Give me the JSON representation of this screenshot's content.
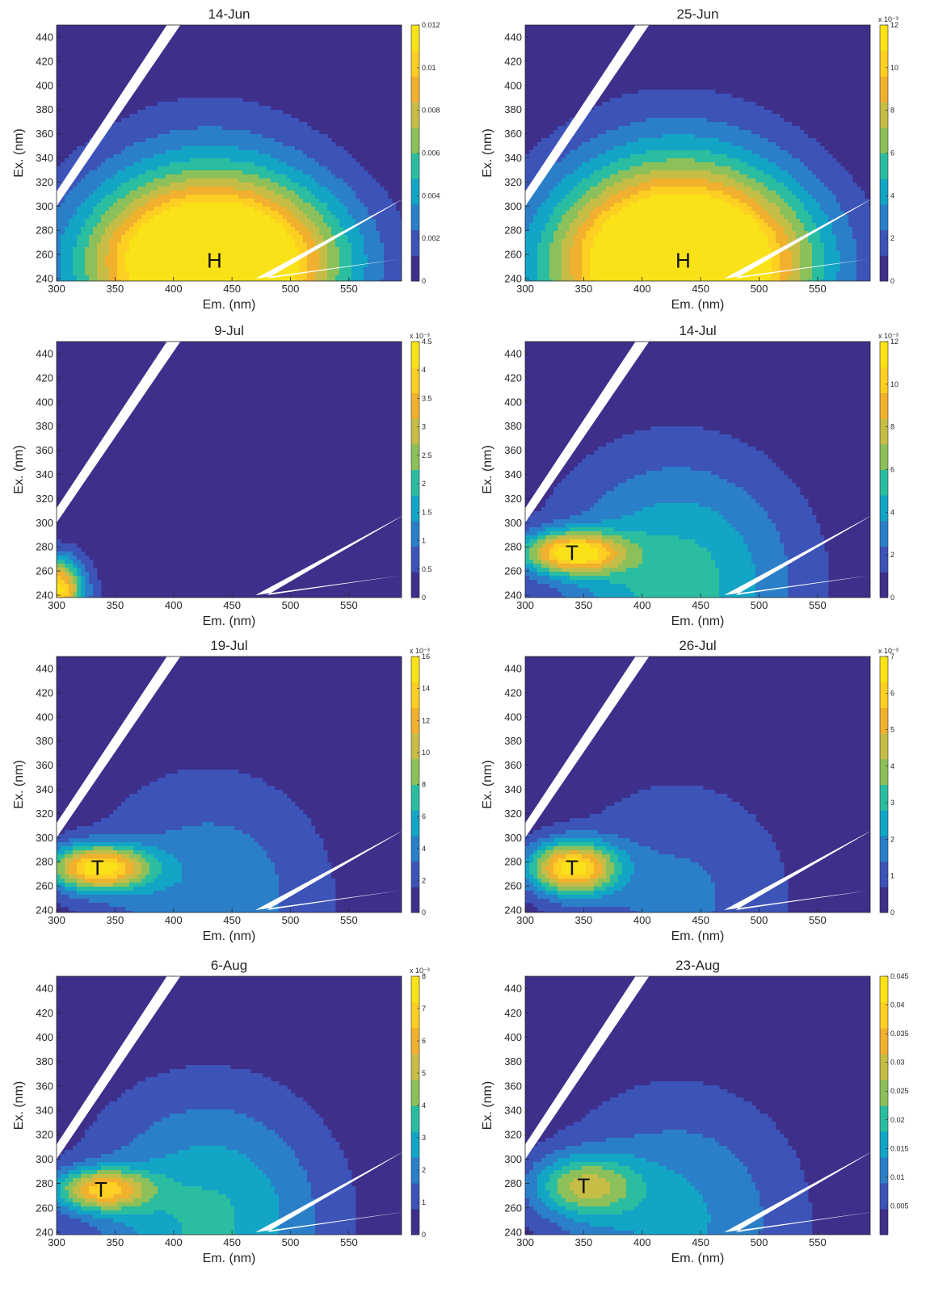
{
  "figure": {
    "palette": [
      "#3e2f8a",
      "#3c53b8",
      "#2a7fc8",
      "#12a5c5",
      "#2bbda0",
      "#8cc05a",
      "#c6bd47",
      "#f1b02e",
      "#fccf22",
      "#f9e218"
    ],
    "scatter_white": "#ffffff"
  },
  "chart_data": [
    {
      "type": "heatmap",
      "title": "14-Jun",
      "xlabel": "Em. (nm)",
      "ylabel": "Ex. (nm)",
      "xlim": [
        300,
        595
      ],
      "ylim": [
        238,
        450
      ],
      "x_ticks": [
        "300",
        "350",
        "400",
        "450",
        "500",
        "550"
      ],
      "y_ticks": [
        "240",
        "260",
        "280",
        "300",
        "320",
        "340",
        "360",
        "380",
        "400",
        "420",
        "440"
      ],
      "colorbar": {
        "min": 0,
        "max": 0.012,
        "exponent": "",
        "ticks": [
          {
            "v": 0,
            "label": "0"
          },
          {
            "v": 0.002,
            "label": "0.002"
          },
          {
            "v": 0.004,
            "label": "0.004"
          },
          {
            "v": 0.006,
            "label": "0.006"
          },
          {
            "v": 0.008,
            "label": "0.008"
          },
          {
            "v": 0.01,
            "label": "0.01"
          },
          {
            "v": 0.012,
            "label": "0.012"
          }
        ]
      },
      "peaks": [
        {
          "label": "H",
          "em": 435,
          "ex": 255,
          "value": 0.0115,
          "sem": 72,
          "sex": 42
        }
      ]
    },
    {
      "type": "heatmap",
      "title": "25-Jun",
      "xlabel": "Em. (nm)",
      "ylabel": "Ex. (nm)",
      "xlim": [
        300,
        595
      ],
      "ylim": [
        238,
        450
      ],
      "x_ticks": [
        "300",
        "350",
        "400",
        "450",
        "500",
        "550"
      ],
      "y_ticks": [
        "240",
        "260",
        "280",
        "300",
        "320",
        "340",
        "360",
        "380",
        "400",
        "420",
        "440"
      ],
      "colorbar": {
        "min": 0,
        "max": 12,
        "exponent": "x 10⁻³",
        "ticks": [
          {
            "v": 0,
            "label": "0"
          },
          {
            "v": 2,
            "label": "2"
          },
          {
            "v": 4,
            "label": "4"
          },
          {
            "v": 6,
            "label": "6"
          },
          {
            "v": 8,
            "label": "8"
          },
          {
            "v": 10,
            "label": "10"
          },
          {
            "v": 12,
            "label": "12"
          }
        ]
      },
      "peaks": [
        {
          "label": "H",
          "em": 435,
          "ex": 255,
          "value": 11,
          "sem": 74,
          "sex": 46
        }
      ]
    },
    {
      "type": "heatmap",
      "title": "9-Jul",
      "xlabel": "Em. (nm)",
      "ylabel": "Ex. (nm)",
      "xlim": [
        300,
        595
      ],
      "ylim": [
        238,
        450
      ],
      "x_ticks": [
        "300",
        "350",
        "400",
        "450",
        "500",
        "550"
      ],
      "y_ticks": [
        "240",
        "260",
        "280",
        "300",
        "320",
        "340",
        "360",
        "380",
        "400",
        "420",
        "440"
      ],
      "colorbar": {
        "min": 0,
        "max": 4.5,
        "exponent": "x 10⁻³",
        "ticks": [
          {
            "v": 0,
            "label": "0"
          },
          {
            "v": 0.5,
            "label": "0.5"
          },
          {
            "v": 1,
            "label": "1"
          },
          {
            "v": 1.5,
            "label": "1.5"
          },
          {
            "v": 2,
            "label": "2"
          },
          {
            "v": 2.5,
            "label": "2.5"
          },
          {
            "v": 3,
            "label": "3"
          },
          {
            "v": 3.5,
            "label": "3.5"
          },
          {
            "v": 4,
            "label": "4"
          },
          {
            "v": 4.5,
            "label": "4.5"
          }
        ]
      },
      "peaks": [
        {
          "label": "",
          "em": 300,
          "ex": 245,
          "value": 4.2,
          "sem": 16,
          "sex": 18
        }
      ]
    },
    {
      "type": "heatmap",
      "title": "14-Jul",
      "xlabel": "Em. (nm)",
      "ylabel": "Ex. (nm)",
      "xlim": [
        300,
        595
      ],
      "ylim": [
        238,
        450
      ],
      "x_ticks": [
        "300",
        "350",
        "400",
        "450",
        "500",
        "550"
      ],
      "y_ticks": [
        "240",
        "260",
        "280",
        "300",
        "320",
        "340",
        "360",
        "380",
        "400",
        "420",
        "440"
      ],
      "colorbar": {
        "min": 0,
        "max": 12,
        "exponent": "x 10⁻³",
        "ticks": [
          {
            "v": 0,
            "label": "0"
          },
          {
            "v": 2,
            "label": "2"
          },
          {
            "v": 4,
            "label": "4"
          },
          {
            "v": 6,
            "label": "6"
          },
          {
            "v": 8,
            "label": "8"
          },
          {
            "v": 10,
            "label": "10"
          },
          {
            "v": 12,
            "label": "12"
          }
        ]
      },
      "peaks": [
        {
          "label": "T",
          "em": 340,
          "ex": 275,
          "value": 10,
          "sem": 30,
          "sex": 12
        }
      ]
    },
    {
      "type": "heatmap",
      "title": "19-Jul",
      "xlabel": "Em. (nm)",
      "ylabel": "Ex. (nm)",
      "xlim": [
        300,
        595
      ],
      "ylim": [
        238,
        450
      ],
      "x_ticks": [
        "300",
        "350",
        "400",
        "450",
        "500",
        "550"
      ],
      "y_ticks": [
        "240",
        "260",
        "280",
        "300",
        "320",
        "340",
        "360",
        "380",
        "400",
        "420",
        "440"
      ],
      "colorbar": {
        "min": 0,
        "max": 16,
        "exponent": "x 10⁻³",
        "ticks": [
          {
            "v": 0,
            "label": "0"
          },
          {
            "v": 2,
            "label": "2"
          },
          {
            "v": 4,
            "label": "4"
          },
          {
            "v": 6,
            "label": "6"
          },
          {
            "v": 8,
            "label": "8"
          },
          {
            "v": 10,
            "label": "10"
          },
          {
            "v": 12,
            "label": "12"
          },
          {
            "v": 14,
            "label": "14"
          },
          {
            "v": 16,
            "label": "16"
          }
        ]
      },
      "peaks": [
        {
          "label": "T",
          "em": 335,
          "ex": 275,
          "value": 14,
          "sem": 30,
          "sex": 13
        }
      ]
    },
    {
      "type": "heatmap",
      "title": "26-Jul",
      "xlabel": "Em. (nm)",
      "ylabel": "Ex. (nm)",
      "xlim": [
        300,
        595
      ],
      "ylim": [
        238,
        450
      ],
      "x_ticks": [
        "300",
        "350",
        "400",
        "450",
        "500",
        "550"
      ],
      "y_ticks": [
        "240",
        "260",
        "280",
        "300",
        "320",
        "340",
        "360",
        "380",
        "400",
        "420",
        "440"
      ],
      "colorbar": {
        "min": 0,
        "max": 7,
        "exponent": "x 10⁻³",
        "ticks": [
          {
            "v": 0,
            "label": "0"
          },
          {
            "v": 1,
            "label": "1"
          },
          {
            "v": 2,
            "label": "2"
          },
          {
            "v": 3,
            "label": "3"
          },
          {
            "v": 4,
            "label": "4"
          },
          {
            "v": 5,
            "label": "5"
          },
          {
            "v": 6,
            "label": "6"
          },
          {
            "v": 7,
            "label": "7"
          }
        ]
      },
      "peaks": [
        {
          "label": "T",
          "em": 340,
          "ex": 275,
          "value": 6.2,
          "sem": 26,
          "sex": 15
        }
      ]
    },
    {
      "type": "heatmap",
      "title": "6-Aug",
      "xlabel": "Em. (nm)",
      "ylabel": "Ex. (nm)",
      "xlim": [
        300,
        595
      ],
      "ylim": [
        238,
        450
      ],
      "x_ticks": [
        "300",
        "350",
        "400",
        "450",
        "500",
        "550"
      ],
      "y_ticks": [
        "240",
        "260",
        "280",
        "300",
        "320",
        "340",
        "360",
        "380",
        "400",
        "420",
        "440"
      ],
      "colorbar": {
        "min": 0,
        "max": 8,
        "exponent": "x 10⁻³",
        "ticks": [
          {
            "v": 0,
            "label": "0"
          },
          {
            "v": 1,
            "label": "1"
          },
          {
            "v": 2,
            "label": "2"
          },
          {
            "v": 3,
            "label": "3"
          },
          {
            "v": 4,
            "label": "4"
          },
          {
            "v": 5,
            "label": "5"
          },
          {
            "v": 6,
            "label": "6"
          },
          {
            "v": 7,
            "label": "7"
          },
          {
            "v": 8,
            "label": "8"
          }
        ]
      },
      "peaks": [
        {
          "label": "T",
          "em": 338,
          "ex": 275,
          "value": 5.5,
          "sem": 28,
          "sex": 12
        }
      ]
    },
    {
      "type": "heatmap",
      "title": "23-Aug",
      "xlabel": "Em. (nm)",
      "ylabel": "Ex. (nm)",
      "xlim": [
        300,
        595
      ],
      "ylim": [
        238,
        450
      ],
      "x_ticks": [
        "300",
        "350",
        "400",
        "450",
        "500",
        "550"
      ],
      "y_ticks": [
        "240",
        "260",
        "280",
        "300",
        "320",
        "340",
        "360",
        "380",
        "400",
        "420",
        "440"
      ],
      "colorbar": {
        "min": 0,
        "max": 0.045,
        "exponent": "",
        "ticks": [
          {
            "v": 0.005,
            "label": "0.005"
          },
          {
            "v": 0.01,
            "label": "0.01"
          },
          {
            "v": 0.015,
            "label": "0.015"
          },
          {
            "v": 0.02,
            "label": "0.02"
          },
          {
            "v": 0.025,
            "label": "0.025"
          },
          {
            "v": 0.03,
            "label": "0.03"
          },
          {
            "v": 0.035,
            "label": "0.035"
          },
          {
            "v": 0.04,
            "label": "0.04"
          },
          {
            "v": 0.045,
            "label": "0.045"
          }
        ]
      },
      "peaks": [
        {
          "label": "T",
          "em": 350,
          "ex": 278,
          "value": 0.022,
          "sem": 32,
          "sex": 18
        }
      ]
    }
  ]
}
